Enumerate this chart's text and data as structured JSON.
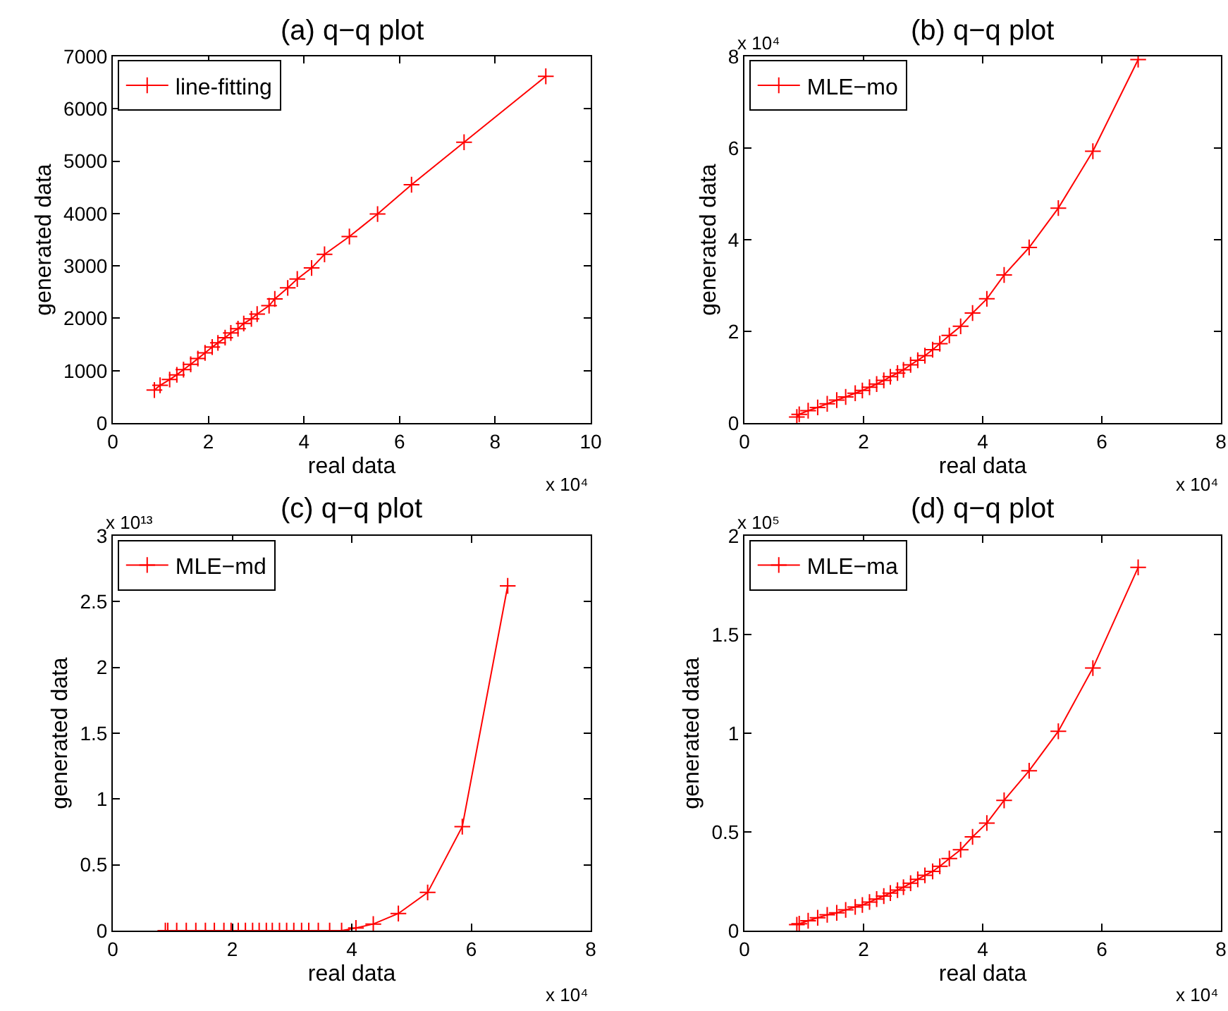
{
  "chart_data": [
    {
      "type": "line",
      "title": "(a) q−q plot",
      "xlabel": "real data",
      "ylabel": "generated data",
      "annotations": [
        "x 10⁴"
      ],
      "x": [
        0.87,
        0.99,
        1.19,
        1.34,
        1.48,
        1.63,
        1.78,
        1.93,
        2.08,
        2.2,
        2.35,
        2.47,
        2.62,
        2.74,
        2.9,
        3.02,
        3.27,
        3.39,
        3.66,
        3.86,
        4.16,
        4.43,
        4.95,
        5.54,
        6.25,
        7.35,
        9.06
      ],
      "series": [
        {
          "name": "line-fitting",
          "color": "#ff0000",
          "values": [
            630,
            720,
            830,
            920,
            1020,
            1120,
            1230,
            1340,
            1450,
            1530,
            1630,
            1720,
            1800,
            1900,
            1990,
            2080,
            2240,
            2370,
            2580,
            2750,
            2960,
            3220,
            3560,
            3990,
            4550,
            5360,
            6620
          ]
        }
      ],
      "xlim": [
        0,
        10
      ],
      "xticks": [
        0,
        2,
        4,
        6,
        8,
        10
      ],
      "ylim": [
        0,
        7000
      ],
      "yticks": [
        0,
        1000,
        2000,
        3000,
        4000,
        5000,
        6000,
        7000
      ],
      "grid": false,
      "legend": "top left",
      "marker": "cross",
      "line_style": "solid"
    },
    {
      "type": "line",
      "title": "(b) q−q plot",
      "xlabel": "real data",
      "ylabel": "generated data",
      "annotations": [
        "x 10⁴",
        "x 10⁴"
      ],
      "x": [
        0.88,
        0.92,
        1.07,
        1.23,
        1.39,
        1.55,
        1.7,
        1.86,
        1.98,
        2.1,
        2.22,
        2.34,
        2.45,
        2.57,
        2.67,
        2.79,
        2.91,
        3.03,
        3.16,
        3.28,
        3.44,
        3.63,
        3.83,
        4.07,
        4.36,
        4.78,
        5.27,
        5.85,
        6.61
      ],
      "series": [
        {
          "name": "MLE−mo",
          "color": "#ff0000",
          "values": [
            0.13,
            0.19,
            0.27,
            0.34,
            0.42,
            0.5,
            0.57,
            0.65,
            0.71,
            0.78,
            0.85,
            0.93,
            1.01,
            1.09,
            1.16,
            1.27,
            1.37,
            1.47,
            1.6,
            1.73,
            1.91,
            2.11,
            2.4,
            2.71,
            3.23,
            3.83,
            4.69,
            5.93,
            7.93
          ]
        }
      ],
      "xlim": [
        0,
        8
      ],
      "xticks": [
        0,
        2,
        4,
        6,
        8
      ],
      "ylim": [
        0,
        8
      ],
      "yticks": [
        0,
        2,
        4,
        6,
        8
      ],
      "grid": false,
      "legend": "top left",
      "marker": "cross",
      "line_style": "solid"
    },
    {
      "type": "line",
      "title": "(c) q−q plot",
      "xlabel": "real data",
      "ylabel": "generated data",
      "annotations": [
        "x 10¹³",
        "x 10⁴"
      ],
      "x": [
        0.88,
        0.92,
        1.07,
        1.23,
        1.39,
        1.55,
        1.7,
        1.86,
        1.98,
        2.1,
        2.22,
        2.34,
        2.45,
        2.57,
        2.67,
        2.79,
        2.91,
        3.03,
        3.16,
        3.28,
        3.44,
        3.63,
        3.83,
        4.07,
        4.36,
        4.78,
        5.27,
        5.85,
        6.61
      ],
      "series": [
        {
          "name": "MLE−md",
          "color": "#ff0000",
          "values": [
            0,
            0,
            0,
            0,
            0,
            0,
            0,
            0,
            0,
            0,
            0,
            0,
            0,
            0,
            0,
            0,
            0,
            0,
            0,
            0,
            0,
            0,
            0,
            0.02,
            0.05,
            0.13,
            0.29,
            0.79,
            2.62
          ]
        }
      ],
      "xlim": [
        0,
        8
      ],
      "xticks": [
        0,
        2,
        4,
        6,
        8
      ],
      "ylim": [
        0,
        3
      ],
      "yticks": [
        0,
        0.5,
        1,
        1.5,
        2,
        2.5,
        3
      ],
      "grid": false,
      "legend": "top left",
      "marker": "cross",
      "line_style": "solid"
    },
    {
      "type": "line",
      "title": "(d) q−q plot",
      "xlabel": "real data",
      "ylabel": "generated data",
      "annotations": [
        "x 10⁵",
        "x 10⁴"
      ],
      "x": [
        0.88,
        0.92,
        1.07,
        1.23,
        1.39,
        1.55,
        1.7,
        1.86,
        1.98,
        2.1,
        2.22,
        2.34,
        2.45,
        2.57,
        2.67,
        2.79,
        2.91,
        3.03,
        3.16,
        3.28,
        3.44,
        3.63,
        3.83,
        4.07,
        4.36,
        4.78,
        5.27,
        5.85,
        6.61
      ],
      "series": [
        {
          "name": "MLE−ma",
          "color": "#ff0000",
          "values": [
            0.03,
            0.035,
            0.05,
            0.065,
            0.08,
            0.09,
            0.105,
            0.12,
            0.13,
            0.145,
            0.16,
            0.175,
            0.19,
            0.205,
            0.22,
            0.24,
            0.26,
            0.28,
            0.3,
            0.326,
            0.365,
            0.41,
            0.475,
            0.545,
            0.66,
            0.81,
            1.01,
            1.33,
            1.84
          ]
        }
      ],
      "xlim": [
        0,
        8
      ],
      "xticks": [
        0,
        2,
        4,
        6,
        8
      ],
      "ylim": [
        0,
        2
      ],
      "yticks": [
        0,
        0.5,
        1,
        1.5,
        2
      ],
      "grid": false,
      "legend": "top left",
      "marker": "cross",
      "line_style": "solid"
    }
  ]
}
